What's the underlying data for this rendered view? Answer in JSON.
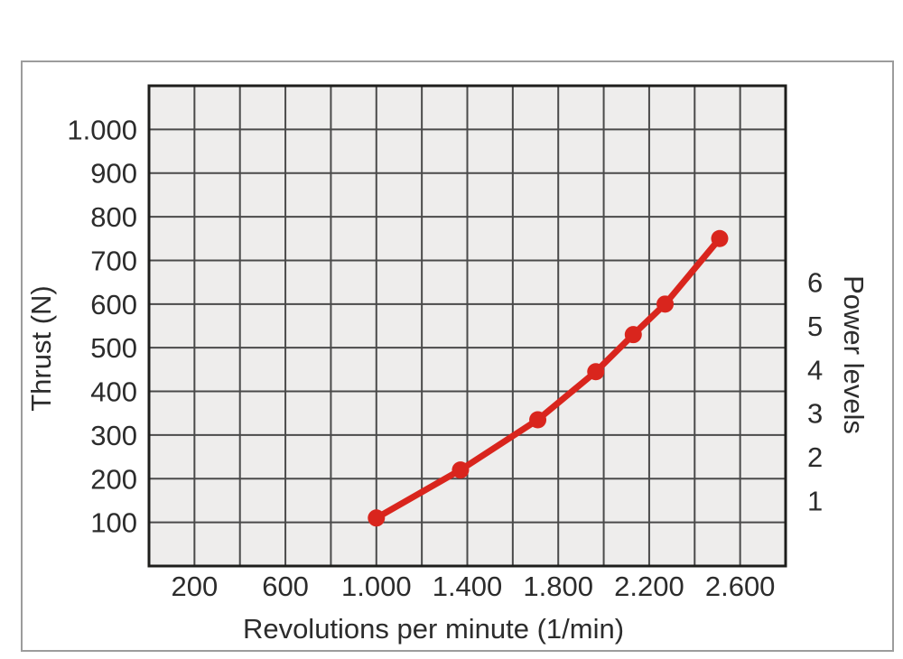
{
  "page": {
    "background_color": "#ffffff",
    "frame_border_color": "#9c9c9c"
  },
  "chart_data": {
    "type": "line",
    "title": "",
    "xlabel": "Revolutions per minute (1/min)",
    "ylabel": "Thrust (N)",
    "y2label": "Power levels",
    "x_range": [
      0,
      2800
    ],
    "y_range": [
      0,
      1100
    ],
    "x_grid_step": 200,
    "y_grid_step": 100,
    "grid": true,
    "legend": "none",
    "x_ticks": [
      {
        "value": 200,
        "label": "200"
      },
      {
        "value": 600,
        "label": "600"
      },
      {
        "value": 1000,
        "label": "1.000"
      },
      {
        "value": 1400,
        "label": "1.400"
      },
      {
        "value": 1800,
        "label": "1.800"
      },
      {
        "value": 2200,
        "label": "2.200"
      },
      {
        "value": 2600,
        "label": "2.600"
      }
    ],
    "y_ticks": [
      {
        "value": 100,
        "label": "100"
      },
      {
        "value": 200,
        "label": "200"
      },
      {
        "value": 300,
        "label": "300"
      },
      {
        "value": 400,
        "label": "400"
      },
      {
        "value": 500,
        "label": "500"
      },
      {
        "value": 600,
        "label": "600"
      },
      {
        "value": 700,
        "label": "700"
      },
      {
        "value": 800,
        "label": "800"
      },
      {
        "value": 900,
        "label": "900"
      },
      {
        "value": 1000,
        "label": "1.000"
      }
    ],
    "series": [
      {
        "name": "thrust-vs-rpm",
        "color": "#d9251d",
        "marker": "circle",
        "points": [
          {
            "rpm": 1000,
            "thrust": 110
          },
          {
            "rpm": 1370,
            "thrust": 220
          },
          {
            "rpm": 1710,
            "thrust": 335
          },
          {
            "rpm": 1965,
            "thrust": 445
          },
          {
            "rpm": 2130,
            "thrust": 530
          },
          {
            "rpm": 2270,
            "thrust": 600
          },
          {
            "rpm": 2510,
            "thrust": 750
          }
        ]
      }
    ],
    "power_levels": [
      {
        "label": "1",
        "at_thrust": 150
      },
      {
        "label": "2",
        "at_thrust": 250
      },
      {
        "label": "3",
        "at_thrust": 350
      },
      {
        "label": "4",
        "at_thrust": 450
      },
      {
        "label": "5",
        "at_thrust": 550
      },
      {
        "label": "6",
        "at_thrust": 650
      }
    ],
    "colors": {
      "plot_fill": "#eeedec",
      "grid_line": "#4a4a4a",
      "plot_border": "#1d1d1b",
      "text": "#2c2c2c",
      "series_red": "#d9251d"
    }
  }
}
